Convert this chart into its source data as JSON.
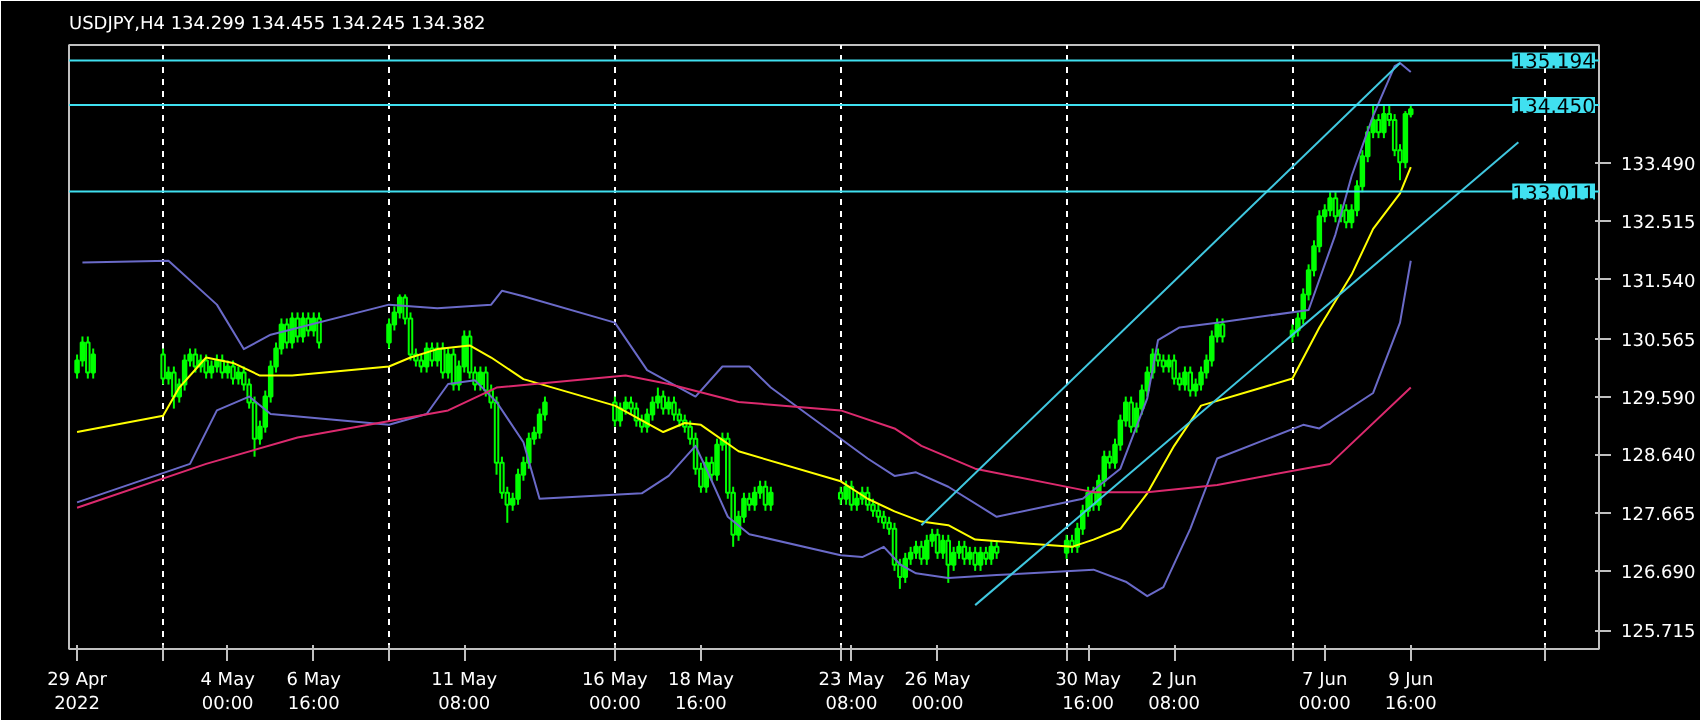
{
  "chart_data": {
    "type": "candlestick",
    "title": "USDJPY,H4  134.299 134.455 134.245 134.382",
    "color": "#00ff00",
    "x": [
      "2022-04-29T08:00",
      "2022-04-29T12:00",
      "2022-04-29T16:00",
      "2022-04-29T20:00",
      "2022-05-02T00:00",
      "2022-05-02T04:00",
      "2022-05-02T08:00",
      "2022-05-02T12:00",
      "2022-05-02T16:00",
      "2022-05-02T20:00",
      "2022-05-03T00:00",
      "2022-05-03T04:00",
      "2022-05-03T08:00",
      "2022-05-03T12:00",
      "2022-05-03T16:00",
      "2022-05-03T20:00",
      "2022-05-04T00:00",
      "2022-05-04T04:00",
      "2022-05-04T08:00",
      "2022-05-04T12:00",
      "2022-05-04T16:00",
      "2022-05-04T20:00",
      "2022-05-05T00:00",
      "2022-05-05T04:00",
      "2022-05-05T08:00",
      "2022-05-05T12:00",
      "2022-05-05T16:00",
      "2022-05-05T20:00",
      "2022-05-06T00:00",
      "2022-05-06T04:00",
      "2022-05-06T08:00",
      "2022-05-06T12:00",
      "2022-05-06T16:00",
      "2022-05-06T20:00",
      "2022-05-09T00:00",
      "2022-05-09T04:00",
      "2022-05-09T08:00",
      "2022-05-09T12:00",
      "2022-05-09T16:00",
      "2022-05-09T20:00",
      "2022-05-10T00:00",
      "2022-05-10T04:00",
      "2022-05-10T08:00",
      "2022-05-10T12:00",
      "2022-05-10T16:00",
      "2022-05-10T20:00",
      "2022-05-11T00:00",
      "2022-05-11T04:00",
      "2022-05-11T08:00",
      "2022-05-11T12:00",
      "2022-05-11T16:00",
      "2022-05-11T20:00",
      "2022-05-12T00:00",
      "2022-05-12T04:00",
      "2022-05-12T08:00",
      "2022-05-12T12:00",
      "2022-05-12T16:00",
      "2022-05-12T20:00",
      "2022-05-13T00:00",
      "2022-05-13T04:00",
      "2022-05-13T08:00",
      "2022-05-13T12:00",
      "2022-05-13T16:00",
      "2022-05-13T20:00",
      "2022-05-16T00:00",
      "2022-05-16T04:00",
      "2022-05-16T08:00",
      "2022-05-16T12:00",
      "2022-05-16T16:00",
      "2022-05-16T20:00",
      "2022-05-17T00:00",
      "2022-05-17T04:00",
      "2022-05-17T08:00",
      "2022-05-17T12:00",
      "2022-05-17T16:00",
      "2022-05-17T20:00",
      "2022-05-18T00:00",
      "2022-05-18T04:00",
      "2022-05-18T08:00",
      "2022-05-18T12:00",
      "2022-05-18T16:00",
      "2022-05-18T20:00",
      "2022-05-19T00:00",
      "2022-05-19T04:00",
      "2022-05-19T08:00",
      "2022-05-19T12:00",
      "2022-05-19T16:00",
      "2022-05-19T20:00",
      "2022-05-20T00:00",
      "2022-05-20T04:00",
      "2022-05-20T08:00",
      "2022-05-20T12:00",
      "2022-05-20T16:00",
      "2022-05-20T20:00",
      "2022-05-23T00:00",
      "2022-05-23T04:00",
      "2022-05-23T08:00",
      "2022-05-23T12:00",
      "2022-05-23T16:00",
      "2022-05-23T20:00",
      "2022-05-24T00:00",
      "2022-05-24T04:00",
      "2022-05-24T08:00",
      "2022-05-24T12:00",
      "2022-05-24T16:00",
      "2022-05-24T20:00",
      "2022-05-25T00:00",
      "2022-05-25T04:00",
      "2022-05-25T08:00",
      "2022-05-25T12:00",
      "2022-05-25T16:00",
      "2022-05-25T20:00",
      "2022-05-26T00:00",
      "2022-05-26T04:00",
      "2022-05-26T08:00",
      "2022-05-26T12:00",
      "2022-05-26T16:00",
      "2022-05-26T20:00",
      "2022-05-27T00:00",
      "2022-05-27T04:00",
      "2022-05-27T08:00",
      "2022-05-27T12:00",
      "2022-05-27T16:00",
      "2022-05-27T20:00",
      "2022-05-30T00:00",
      "2022-05-30T04:00",
      "2022-05-30T08:00",
      "2022-05-30T12:00",
      "2022-05-30T16:00",
      "2022-05-30T20:00",
      "2022-05-31T00:00",
      "2022-05-31T04:00",
      "2022-05-31T08:00",
      "2022-05-31T12:00",
      "2022-05-31T16:00",
      "2022-05-31T20:00",
      "2022-06-01T00:00",
      "2022-06-01T04:00",
      "2022-06-01T08:00",
      "2022-06-01T12:00",
      "2022-06-01T16:00",
      "2022-06-01T20:00",
      "2022-06-02T00:00",
      "2022-06-02T04:00",
      "2022-06-02T08:00",
      "2022-06-02T12:00",
      "2022-06-02T16:00",
      "2022-06-02T20:00",
      "2022-06-03T00:00",
      "2022-06-03T04:00",
      "2022-06-03T08:00",
      "2022-06-03T12:00",
      "2022-06-03T16:00",
      "2022-06-03T20:00",
      "2022-06-06T00:00",
      "2022-06-06T04:00",
      "2022-06-06T08:00",
      "2022-06-06T12:00",
      "2022-06-06T16:00",
      "2022-06-06T20:00",
      "2022-06-07T00:00",
      "2022-06-07T04:00",
      "2022-06-07T08:00",
      "2022-06-07T12:00",
      "2022-06-07T16:00",
      "2022-06-07T20:00",
      "2022-06-08T00:00",
      "2022-06-08T04:00",
      "2022-06-08T08:00",
      "2022-06-08T12:00",
      "2022-06-08T16:00",
      "2022-06-08T20:00",
      "2022-06-09T00:00",
      "2022-06-09T04:00",
      "2022-06-09T08:00",
      "2022-06-09T12:00",
      "2022-06-09T16:00"
    ],
    "ohlc": [
      [
        130.0,
        130.3,
        129.9,
        130.2
      ],
      [
        130.2,
        130.6,
        130.1,
        130.5
      ],
      [
        130.5,
        130.6,
        129.9,
        130.0
      ],
      [
        130.0,
        130.4,
        129.9,
        130.3
      ],
      [
        130.3,
        130.4,
        129.8,
        129.9
      ],
      [
        129.9,
        130.1,
        129.8,
        130.0
      ],
      [
        130.0,
        130.1,
        129.4,
        129.6
      ],
      [
        129.6,
        129.9,
        129.5,
        129.8
      ],
      [
        129.8,
        130.3,
        129.7,
        130.2
      ],
      [
        130.2,
        130.4,
        130.1,
        130.3
      ],
      [
        130.3,
        130.4,
        130.0,
        130.1
      ],
      [
        130.1,
        130.3,
        130.0,
        130.2
      ],
      [
        130.2,
        130.3,
        129.9,
        130.0
      ],
      [
        130.0,
        130.2,
        129.9,
        130.1
      ],
      [
        130.1,
        130.3,
        130.0,
        130.2
      ],
      [
        130.2,
        130.3,
        129.9,
        130.0
      ],
      [
        130.0,
        130.2,
        129.9,
        130.1
      ],
      [
        130.1,
        130.2,
        129.8,
        129.9
      ],
      [
        129.9,
        130.1,
        129.8,
        130.0
      ],
      [
        130.0,
        130.1,
        129.7,
        129.8
      ],
      [
        129.8,
        129.9,
        129.4,
        129.5
      ],
      [
        129.5,
        129.6,
        128.6,
        128.9
      ],
      [
        128.9,
        129.2,
        128.8,
        129.1
      ],
      [
        129.1,
        129.7,
        129.0,
        129.6
      ],
      [
        129.6,
        130.2,
        129.5,
        130.1
      ],
      [
        130.1,
        130.5,
        130.0,
        130.4
      ],
      [
        130.4,
        130.9,
        130.3,
        130.8
      ],
      [
        130.8,
        130.9,
        130.4,
        130.5
      ],
      [
        130.5,
        131.0,
        130.4,
        130.9
      ],
      [
        130.9,
        131.0,
        130.5,
        130.6
      ],
      [
        130.6,
        131.0,
        130.5,
        130.9
      ],
      [
        130.9,
        131.0,
        130.6,
        130.7
      ],
      [
        130.7,
        131.0,
        130.6,
        130.9
      ],
      [
        130.9,
        131.0,
        130.4,
        130.5
      ],
      [
        130.5,
        130.9,
        130.4,
        130.8
      ],
      [
        130.8,
        131.1,
        130.7,
        131.0
      ],
      [
        131.0,
        131.3,
        130.9,
        131.25
      ],
      [
        131.25,
        131.3,
        130.8,
        130.9
      ],
      [
        130.9,
        131.0,
        130.2,
        130.3
      ],
      [
        130.3,
        130.4,
        130.1,
        130.2
      ],
      [
        130.2,
        130.3,
        130.0,
        130.1
      ],
      [
        130.1,
        130.5,
        130.0,
        130.4
      ],
      [
        130.4,
        130.5,
        130.1,
        130.2
      ],
      [
        130.2,
        130.5,
        130.1,
        130.4
      ],
      [
        130.4,
        130.5,
        129.9,
        130.0
      ],
      [
        130.0,
        130.4,
        129.9,
        130.3
      ],
      [
        130.3,
        130.4,
        129.7,
        129.8
      ],
      [
        129.8,
        130.2,
        129.7,
        130.1
      ],
      [
        130.1,
        130.7,
        130.0,
        130.6
      ],
      [
        130.6,
        130.7,
        129.9,
        130.0
      ],
      [
        130.0,
        130.1,
        129.7,
        129.8
      ],
      [
        129.8,
        130.1,
        129.7,
        130.0
      ],
      [
        130.0,
        130.1,
        129.6,
        129.7
      ],
      [
        129.7,
        129.8,
        129.4,
        129.5
      ],
      [
        129.5,
        129.6,
        128.3,
        128.5
      ],
      [
        128.5,
        128.6,
        127.9,
        128.0
      ],
      [
        128.0,
        128.1,
        127.5,
        127.8
      ],
      [
        127.8,
        128.0,
        127.7,
        127.9
      ],
      [
        127.9,
        128.4,
        127.8,
        128.3
      ],
      [
        128.3,
        128.6,
        128.2,
        128.5
      ],
      [
        128.5,
        129.0,
        128.4,
        128.9
      ],
      [
        128.9,
        129.1,
        128.8,
        129.0
      ],
      [
        129.0,
        129.4,
        128.9,
        129.3
      ],
      [
        129.3,
        129.6,
        129.2,
        129.5
      ],
      [
        129.5,
        129.6,
        129.1,
        129.2
      ],
      [
        129.2,
        129.5,
        129.1,
        129.4
      ],
      [
        129.4,
        129.6,
        129.3,
        129.5
      ],
      [
        129.5,
        129.6,
        129.3,
        129.4
      ],
      [
        129.4,
        129.5,
        129.1,
        129.2
      ],
      [
        129.2,
        129.3,
        129.0,
        129.1
      ],
      [
        129.1,
        129.4,
        129.0,
        129.3
      ],
      [
        129.3,
        129.6,
        129.2,
        129.5
      ],
      [
        129.5,
        129.75,
        129.4,
        129.6
      ],
      [
        129.6,
        129.7,
        129.3,
        129.4
      ],
      [
        129.4,
        129.6,
        129.3,
        129.5
      ],
      [
        129.5,
        129.6,
        129.2,
        129.3
      ],
      [
        129.3,
        129.4,
        129.1,
        129.2
      ],
      [
        129.2,
        129.3,
        129.0,
        129.1
      ],
      [
        129.1,
        129.2,
        128.8,
        128.9
      ],
      [
        128.9,
        129.0,
        128.3,
        128.4
      ],
      [
        128.4,
        128.5,
        128.0,
        128.1
      ],
      [
        128.1,
        128.6,
        128.0,
        128.5
      ],
      [
        128.5,
        128.6,
        128.2,
        128.3
      ],
      [
        128.3,
        128.9,
        128.2,
        128.8
      ],
      [
        128.8,
        129.0,
        128.7,
        128.9
      ],
      [
        128.9,
        129.0,
        127.9,
        128.0
      ],
      [
        128.0,
        128.1,
        127.1,
        127.3
      ],
      [
        127.3,
        127.7,
        127.2,
        127.6
      ],
      [
        127.6,
        128.0,
        127.5,
        127.9
      ],
      [
        127.9,
        128.0,
        127.7,
        127.8
      ],
      [
        127.8,
        128.1,
        127.7,
        128.0
      ],
      [
        128.0,
        128.2,
        127.9,
        128.1
      ],
      [
        128.1,
        128.2,
        127.7,
        127.8
      ],
      [
        127.8,
        128.1,
        127.7,
        128.0
      ],
      [
        128.0,
        128.1,
        127.8,
        127.9
      ],
      [
        127.9,
        128.2,
        127.8,
        128.1
      ],
      [
        128.1,
        128.2,
        127.7,
        127.8
      ],
      [
        127.8,
        128.0,
        127.7,
        127.9
      ],
      [
        127.9,
        128.1,
        127.8,
        128.0
      ],
      [
        128.0,
        128.1,
        127.7,
        127.8
      ],
      [
        127.8,
        127.9,
        127.6,
        127.7
      ],
      [
        127.7,
        127.8,
        127.5,
        127.6
      ],
      [
        127.6,
        127.7,
        127.4,
        127.5
      ],
      [
        127.5,
        127.6,
        127.3,
        127.4
      ],
      [
        127.4,
        127.5,
        126.7,
        126.8
      ],
      [
        126.8,
        126.9,
        126.4,
        126.6
      ],
      [
        126.6,
        127.0,
        126.5,
        126.9
      ],
      [
        126.9,
        127.1,
        126.8,
        127.0
      ],
      [
        127.0,
        127.2,
        126.9,
        127.1
      ],
      [
        127.1,
        127.2,
        126.8,
        126.9
      ],
      [
        126.9,
        127.3,
        126.8,
        127.2
      ],
      [
        127.2,
        127.4,
        127.1,
        127.3
      ],
      [
        127.3,
        127.4,
        126.9,
        127.0
      ],
      [
        127.0,
        127.3,
        126.9,
        127.2
      ],
      [
        127.2,
        127.3,
        126.5,
        126.8
      ],
      [
        126.8,
        127.1,
        126.7,
        127.0
      ],
      [
        127.0,
        127.2,
        126.9,
        127.1
      ],
      [
        127.1,
        127.2,
        126.8,
        126.9
      ],
      [
        126.9,
        127.1,
        126.8,
        127.0
      ],
      [
        127.0,
        127.1,
        126.7,
        126.8
      ],
      [
        126.8,
        127.1,
        126.7,
        127.0
      ],
      [
        127.0,
        127.1,
        126.8,
        126.9
      ],
      [
        126.9,
        127.2,
        126.8,
        127.1
      ],
      [
        127.1,
        127.2,
        126.9,
        127.0
      ],
      [
        127.0,
        127.3,
        126.9,
        127.2
      ],
      [
        127.2,
        127.3,
        127.0,
        127.1
      ],
      [
        127.1,
        127.5,
        127.0,
        127.4
      ],
      [
        127.4,
        127.8,
        127.3,
        127.7
      ],
      [
        127.7,
        128.1,
        127.6,
        128.0
      ],
      [
        128.0,
        128.1,
        127.7,
        127.8
      ],
      [
        127.8,
        128.3,
        127.7,
        128.2
      ],
      [
        128.2,
        128.7,
        128.1,
        128.6
      ],
      [
        128.6,
        128.7,
        128.4,
        128.5
      ],
      [
        128.5,
        128.9,
        128.4,
        128.8
      ],
      [
        128.8,
        129.3,
        128.7,
        129.2
      ],
      [
        129.2,
        129.6,
        129.1,
        129.5
      ],
      [
        129.5,
        129.6,
        129.0,
        129.1
      ],
      [
        129.1,
        129.5,
        129.0,
        129.4
      ],
      [
        129.4,
        129.8,
        129.3,
        129.7
      ],
      [
        129.7,
        130.1,
        129.6,
        130.0
      ],
      [
        130.0,
        130.4,
        129.9,
        130.3
      ],
      [
        130.3,
        130.4,
        130.1,
        130.2
      ],
      [
        130.2,
        130.3,
        130.0,
        130.1
      ],
      [
        130.1,
        130.3,
        130.0,
        130.2
      ],
      [
        130.2,
        130.3,
        129.8,
        129.9
      ],
      [
        129.9,
        130.0,
        129.7,
        129.8
      ],
      [
        129.8,
        130.1,
        129.7,
        130.0
      ],
      [
        130.0,
        130.1,
        129.6,
        129.7
      ],
      [
        129.7,
        129.9,
        129.6,
        129.8
      ],
      [
        129.8,
        130.1,
        129.7,
        130.0
      ],
      [
        130.0,
        130.3,
        129.9,
        130.2
      ],
      [
        130.2,
        130.7,
        130.1,
        130.6
      ],
      [
        130.6,
        130.9,
        130.5,
        130.8
      ],
      [
        130.8,
        130.9,
        130.5,
        130.6
      ],
      [
        130.6,
        130.8,
        130.5,
        130.7
      ],
      [
        130.7,
        131.0,
        130.6,
        130.9
      ],
      [
        130.9,
        131.4,
        130.8,
        131.3
      ],
      [
        131.3,
        131.8,
        131.2,
        131.7
      ],
      [
        131.7,
        132.2,
        131.6,
        132.1
      ],
      [
        132.1,
        132.7,
        132.0,
        132.6
      ],
      [
        132.6,
        132.8,
        132.5,
        132.7
      ],
      [
        132.7,
        133.0,
        132.6,
        132.9
      ],
      [
        132.9,
        133.0,
        132.5,
        132.6
      ],
      [
        132.6,
        132.8,
        132.5,
        132.7
      ],
      [
        132.7,
        132.8,
        132.4,
        132.5
      ],
      [
        132.5,
        132.8,
        132.4,
        132.7
      ],
      [
        132.7,
        133.2,
        132.6,
        133.1
      ],
      [
        133.1,
        133.7,
        133.0,
        133.6
      ],
      [
        133.6,
        134.1,
        133.5,
        134.0
      ],
      [
        134.0,
        134.45,
        133.9,
        134.2
      ],
      [
        134.2,
        134.3,
        133.9,
        134.0
      ],
      [
        134.0,
        134.45,
        133.9,
        134.3
      ],
      [
        134.3,
        134.45,
        134.1,
        134.2
      ],
      [
        134.2,
        134.3,
        133.6,
        133.7
      ],
      [
        133.7,
        133.8,
        133.2,
        133.5
      ],
      [
        133.5,
        134.35,
        133.4,
        134.3
      ],
      [
        134.299,
        134.455,
        134.245,
        134.382
      ]
    ],
    "series": [
      {
        "type": "line",
        "color": "#6a6ac8",
        "x": [
          "2022-04-29T12:00",
          "2022-05-02T04:00",
          "2022-05-03T16:00",
          "2022-05-04T12:00",
          "2022-05-05T08:00",
          "2022-05-09T00:00",
          "2022-05-10T12:00",
          "2022-05-12T04:00",
          "2022-05-12T12:00",
          "2022-05-13T04:00",
          "2022-05-16T00:00",
          "2022-05-17T00:00",
          "2022-05-18T12:00",
          "2022-05-19T08:00",
          "2022-05-20T04:00",
          "2022-05-20T20:00",
          "2022-05-23T20:00",
          "2022-05-24T16:00",
          "2022-05-25T08:00",
          "2022-05-26T08:00",
          "2022-05-27T20:00",
          "2022-05-30T12:00",
          "2022-05-31T16:00",
          "2022-06-01T12:00",
          "2022-06-01T20:00",
          "2022-06-02T12:00",
          "2022-06-03T16:00",
          "2022-06-06T12:00",
          "2022-06-07T08:00",
          "2022-06-07T20:00",
          "2022-06-08T12:00",
          "2022-06-09T04:00",
          "2022-06-09T08:00",
          "2022-06-09T16:00"
        ],
        "values": [
          131.83,
          131.86,
          131.13,
          130.39,
          130.63,
          131.13,
          131.07,
          131.13,
          131.36,
          131.27,
          130.83,
          130.04,
          129.6,
          130.1,
          130.1,
          129.75,
          128.57,
          128.28,
          128.34,
          128.1,
          127.6,
          127.9,
          128.4,
          129.57,
          130.54,
          130.75,
          130.83,
          131.04,
          132.3,
          133.27,
          134.27,
          135.1,
          135.15,
          135.0
        ]
      },
      {
        "type": "line",
        "color": "#6a6ac8",
        "x": [
          "2022-04-29T08:00",
          "2022-05-02T20:00",
          "2022-05-03T16:00",
          "2022-05-04T16:00",
          "2022-05-05T08:00",
          "2022-05-09T00:00",
          "2022-05-10T04:00",
          "2022-05-10T20:00",
          "2022-05-11T16:00",
          "2022-05-12T08:00",
          "2022-05-13T04:00",
          "2022-05-13T16:00",
          "2022-05-16T20:00",
          "2022-05-17T16:00",
          "2022-05-18T12:00",
          "2022-05-18T20:00",
          "2022-05-19T12:00",
          "2022-05-20T04:00",
          "2022-05-23T00:00",
          "2022-05-23T16:00",
          "2022-05-24T08:00",
          "2022-05-24T20:00",
          "2022-05-25T08:00",
          "2022-05-26T08:00",
          "2022-05-27T20:00",
          "2022-05-30T20:00",
          "2022-05-31T20:00",
          "2022-06-01T12:00",
          "2022-06-02T00:00",
          "2022-06-02T20:00",
          "2022-06-03T16:00",
          "2022-06-06T08:00",
          "2022-06-06T20:00",
          "2022-06-08T12:00",
          "2022-06-09T08:00",
          "2022-06-09T16:00"
        ],
        "values": [
          127.84,
          128.48,
          129.37,
          129.6,
          129.31,
          129.13,
          129.31,
          129.81,
          129.87,
          129.51,
          128.84,
          127.9,
          127.99,
          128.28,
          128.78,
          128.4,
          127.6,
          127.31,
          126.96,
          126.93,
          127.1,
          126.81,
          126.66,
          126.58,
          126.63,
          126.72,
          126.52,
          126.28,
          126.43,
          127.4,
          128.57,
          129.13,
          129.07,
          129.66,
          130.83,
          131.86
        ]
      },
      {
        "type": "line",
        "color": "#ffff00",
        "x": [
          "2022-04-29T08:00",
          "2022-05-02T00:00",
          "2022-05-02T12:00",
          "2022-05-03T08:00",
          "2022-05-04T04:00",
          "2022-05-05T00:00",
          "2022-05-06T00:00",
          "2022-05-09T00:00",
          "2022-05-09T16:00",
          "2022-05-10T12:00",
          "2022-05-11T12:00",
          "2022-05-12T04:00",
          "2022-05-13T04:00",
          "2022-05-16T00:00",
          "2022-05-17T12:00",
          "2022-05-18T04:00",
          "2022-05-18T16:00",
          "2022-05-19T20:00",
          "2022-05-23T00:00",
          "2022-05-23T20:00",
          "2022-05-24T16:00",
          "2022-05-25T12:00",
          "2022-05-26T08:00",
          "2022-05-27T04:00",
          "2022-05-30T04:00",
          "2022-05-30T20:00",
          "2022-05-31T16:00",
          "2022-06-01T12:00",
          "2022-06-02T08:00",
          "2022-06-03T04:00",
          "2022-06-06T00:00",
          "2022-06-06T20:00",
          "2022-06-07T20:00",
          "2022-06-08T12:00",
          "2022-06-09T08:00",
          "2022-06-09T16:00"
        ],
        "values": [
          129.01,
          129.28,
          129.75,
          130.25,
          130.16,
          129.95,
          129.95,
          130.1,
          130.25,
          130.39,
          130.45,
          130.25,
          129.89,
          129.45,
          129.01,
          129.16,
          129.13,
          128.69,
          128.19,
          127.9,
          127.69,
          127.52,
          127.46,
          127.22,
          127.1,
          127.22,
          127.4,
          127.99,
          128.78,
          129.45,
          129.9,
          130.75,
          131.63,
          132.39,
          132.98,
          133.42
        ]
      },
      {
        "type": "line",
        "color": "#dc2a6e",
        "x": [
          "2022-04-29T08:00",
          "2022-05-03T08:00",
          "2022-05-06T04:00",
          "2022-05-10T20:00",
          "2022-05-12T08:00",
          "2022-05-16T08:00",
          "2022-05-17T16:00",
          "2022-05-19T20:00",
          "2022-05-23T00:00",
          "2022-05-24T16:00",
          "2022-05-25T12:00",
          "2022-05-27T04:00",
          "2022-05-30T20:00",
          "2022-06-01T12:00",
          "2022-06-03T16:00",
          "2022-06-07T04:00",
          "2022-06-09T16:00"
        ],
        "values": [
          127.75,
          128.48,
          128.92,
          129.37,
          129.75,
          129.95,
          129.81,
          129.51,
          129.37,
          129.07,
          128.78,
          128.4,
          128.01,
          128.01,
          128.13,
          128.48,
          129.75
        ]
      },
      {
        "type": "line",
        "color": "#40c8e0",
        "x": [
          "2022-05-25T12:00",
          "2022-06-09T08:00"
        ],
        "values": [
          127.46,
          135.15
        ]
      },
      {
        "type": "line",
        "color": "#40c8e0",
        "x": [
          "2022-05-27T04:00",
          "2022-06-13T00:00"
        ],
        "values": [
          126.13,
          133.83
        ]
      }
    ],
    "xlim": [
      "2022-04-29T02:00",
      "2022-06-15T12:00"
    ],
    "xticks": [
      {
        "value": "2022-05-02T00:00",
        "label": null
      },
      {
        "value": "2022-05-09T00:00",
        "label": null
      },
      {
        "value": "2022-05-16T00:00",
        "label": null
      },
      {
        "value": "2022-05-23T00:00",
        "label": null
      },
      {
        "value": "2022-05-30T00:00",
        "label": null
      },
      {
        "value": "2022-06-06T00:00",
        "label": null
      },
      {
        "value": "2022-06-13T20:00",
        "label": null
      },
      {
        "value": "2022-04-29T08:00",
        "label": "29 Apr 2022"
      },
      {
        "value": "2022-05-04T00:00",
        "label": "4 May 00:00"
      },
      {
        "value": "2022-05-06T16:00",
        "label": "6 May 16:00"
      },
      {
        "value": "2022-05-11T08:00",
        "label": "11 May 08:00"
      },
      {
        "value": "2022-05-16T00:00",
        "label": "16 May 00:00"
      },
      {
        "value": "2022-05-18T16:00",
        "label": "18 May 16:00"
      },
      {
        "value": "2022-05-23T08:00",
        "label": "23 May 08:00"
      },
      {
        "value": "2022-05-26T00:00",
        "label": "26 May 00:00"
      },
      {
        "value": "2022-05-30T16:00",
        "label": "30 May 16:00"
      },
      {
        "value": "2022-06-02T08:00",
        "label": "2 Jun 08:00"
      },
      {
        "value": "2022-06-07T00:00",
        "label": "7 Jun 00:00"
      },
      {
        "value": "2022-06-09T16:00",
        "label": "9 Jun 16:00"
      }
    ],
    "ylim": [
      125.4,
      135.45
    ],
    "yticks": [
      125.715,
      {
        "value": 126.69,
        "label": "126.690"
      },
      127.665,
      {
        "value": 128.64,
        "label": "128.640"
      },
      {
        "value": 129.59,
        "label": "129.590"
      },
      130.565,
      {
        "value": 131.54,
        "label": "131.540"
      },
      132.515,
      {
        "value": 133.49,
        "label": "133.490"
      }
    ],
    "grid": "x",
    "ref_lines": [
      {
        "axis": "y",
        "value": 135.194,
        "label": "135.194",
        "color": "#40e0f0"
      },
      {
        "axis": "y",
        "value": 134.45,
        "label": "134.450",
        "color": "#40e0f0"
      },
      {
        "axis": "y",
        "value": 133.011,
        "label": "133.011",
        "color": "#40e0f0"
      }
    ]
  }
}
